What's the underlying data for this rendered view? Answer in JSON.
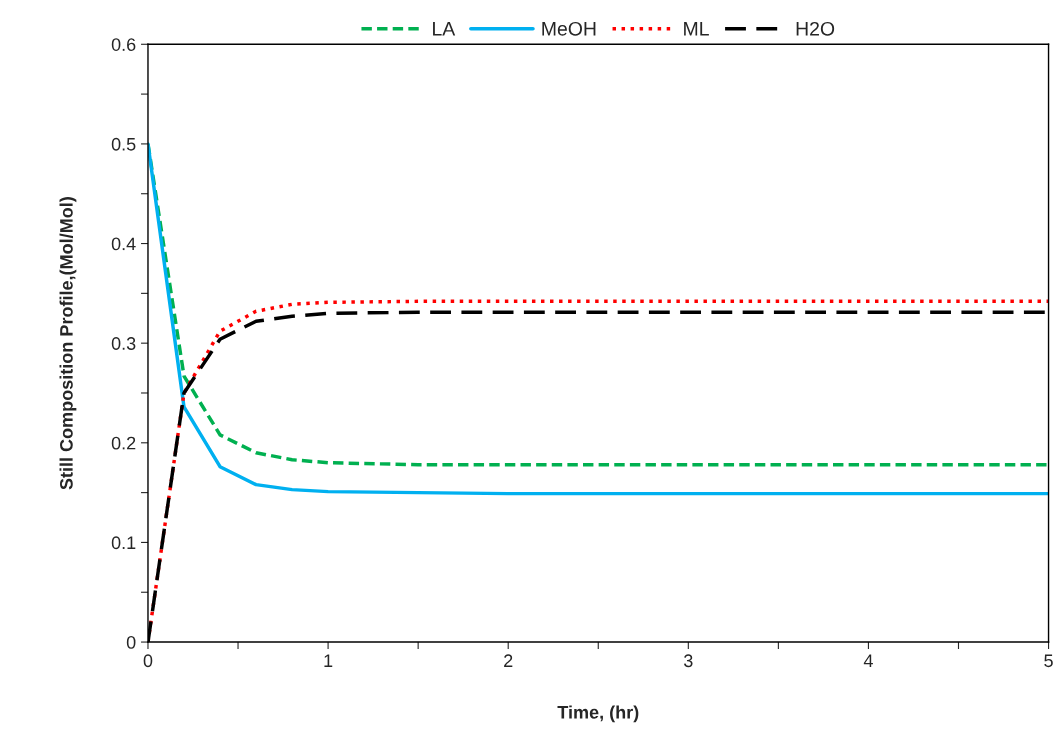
{
  "chart_data": {
    "type": "line",
    "xlabel": "Time, (hr)",
    "ylabel": "Still Composition Profile,(Mol/Mol)",
    "x": [
      0,
      0.2,
      0.4,
      0.6,
      0.8,
      1.0,
      1.5,
      2,
      3,
      4,
      5
    ],
    "series": [
      {
        "name": "LA",
        "color": "#00b050",
        "line_style": "dashed",
        "values": [
          0.5,
          0.267,
          0.208,
          0.19,
          0.183,
          0.18,
          0.178,
          0.178,
          0.178,
          0.178,
          0.178
        ]
      },
      {
        "name": "MeOH",
        "color": "#00b0f0",
        "line_style": "solid",
        "values": [
          0.5,
          0.236,
          0.176,
          0.158,
          0.153,
          0.151,
          0.15,
          0.149,
          0.149,
          0.149,
          0.149
        ]
      },
      {
        "name": "ML",
        "color": "#ff0000",
        "line_style": "dotted",
        "values": [
          0,
          0.25,
          0.312,
          0.332,
          0.339,
          0.341,
          0.342,
          0.342,
          0.342,
          0.342,
          0.342
        ]
      },
      {
        "name": "H2O",
        "color": "#000000",
        "line_style": "longdash",
        "values": [
          0,
          0.25,
          0.304,
          0.322,
          0.327,
          0.33,
          0.331,
          0.331,
          0.331,
          0.331,
          0.331
        ]
      }
    ],
    "xlim": [
      0,
      5
    ],
    "xticks": [
      0,
      {
        "value": 0.5,
        "label": null
      },
      1,
      {
        "value": 1.5,
        "label": null
      },
      2,
      {
        "value": 2.5,
        "label": null
      },
      3,
      {
        "value": 3.5,
        "label": null
      },
      4,
      {
        "value": 4.5,
        "label": null
      },
      5
    ],
    "ylim": [
      0,
      0.6
    ],
    "yticks": [
      0,
      {
        "value": 0.05,
        "label": null
      },
      0.1,
      {
        "value": 0.15,
        "label": null
      },
      0.2,
      {
        "value": 0.25,
        "label": null
      },
      0.3,
      {
        "value": 0.35,
        "label": null
      },
      0.4,
      {
        "value": 0.45,
        "label": null
      },
      0.5,
      {
        "value": 0.55,
        "label": null
      },
      0.6
    ],
    "grid": false,
    "legend": "top",
    "marker": "none"
  }
}
